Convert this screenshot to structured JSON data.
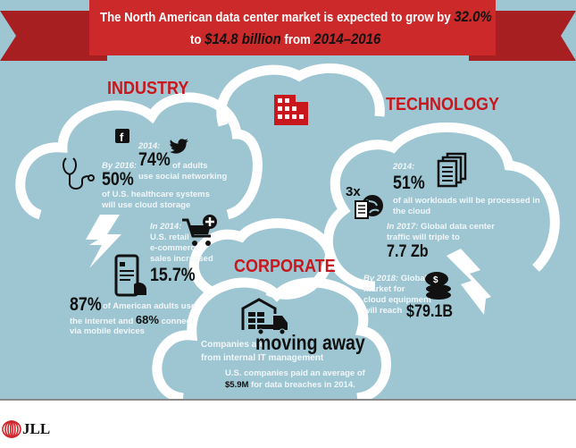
{
  "banner": {
    "line1": "The North American data center market is expected to grow by ",
    "line1_value": "32.0%",
    "line2_pre": "to ",
    "line2_value": "$14.8 billion",
    "line2_mid": " from ",
    "line2_years": "2014–2016"
  },
  "colors": {
    "background": "#9dc6d2",
    "accent_red": "#c8171d",
    "banner_red": "#cc2a2a"
  },
  "industry": {
    "heading": "INDUSTRY",
    "social": {
      "year": "2014:",
      "value": "74%",
      "text1": "of adults",
      "text2": "use social networking"
    },
    "healthcare": {
      "year": "By 2016:",
      "value": "50%",
      "text1": "of U.S. healthcare systems",
      "text2": "will use cloud storage"
    },
    "retail": {
      "year": "In 2014:",
      "text1": "U.S. retail",
      "text2": "e-commerce",
      "text3": "sales increased",
      "value": "15.7%"
    },
    "mobile": {
      "value": "87%",
      "text1": "of American adults use",
      "text2": "the internet and",
      "value2": "68%",
      "text3": "connect",
      "text4": "via mobile devices"
    }
  },
  "technology": {
    "heading": "TECHNOLOGY",
    "workloads": {
      "year": "2014:",
      "value": "51%",
      "text1": "of all workloads will be processed in",
      "text2": "the cloud"
    },
    "traffic": {
      "multiplier": "3x",
      "year": "In 2017:",
      "text1": " Global data center",
      "text2": "traffic will triple to",
      "value": "7.7 Zb"
    },
    "equipment": {
      "year": "By 2018:",
      "text1": " Global",
      "text2": "market for",
      "text3": "cloud equipment",
      "text4": "will reach",
      "value": "$79.1B"
    }
  },
  "corporate": {
    "heading": "CORPORATE",
    "text1": "Companies are",
    "highlight": "moving away",
    "text2": "from internal IT management",
    "text3": "U.S. companies paid an average of",
    "value": "$5.9M",
    "text4": "for data breaches in 2014."
  },
  "footer": {
    "logo": "JLL"
  },
  "icons": [
    "building-icon",
    "facebook-icon",
    "twitter-icon",
    "stethoscope-icon",
    "lightning-icon",
    "cart-plus-icon",
    "smartphone-icon",
    "documents-icon",
    "globe-icon",
    "coins-icon",
    "warehouse-truck-icon"
  ]
}
